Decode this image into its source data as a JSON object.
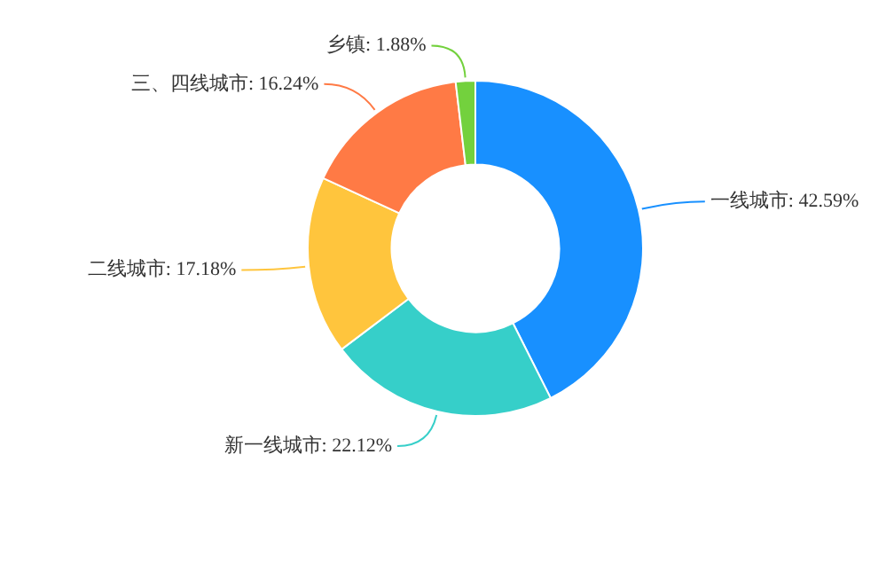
{
  "chart_data": {
    "type": "donut",
    "categories": [
      "一线城市",
      "新一线城市",
      "二线城市",
      "三、四线城市",
      "乡镇"
    ],
    "values": [
      42.59,
      22.12,
      17.18,
      16.24,
      1.88
    ],
    "colors": [
      "#1890ff",
      "#36cfc9",
      "#ffc53d",
      "#ff7a45",
      "#73d13d"
    ],
    "value_labels": [
      "42.59%",
      "22.12%",
      "17.18%",
      "16.24%",
      "1.88%"
    ],
    "legend": false
  }
}
